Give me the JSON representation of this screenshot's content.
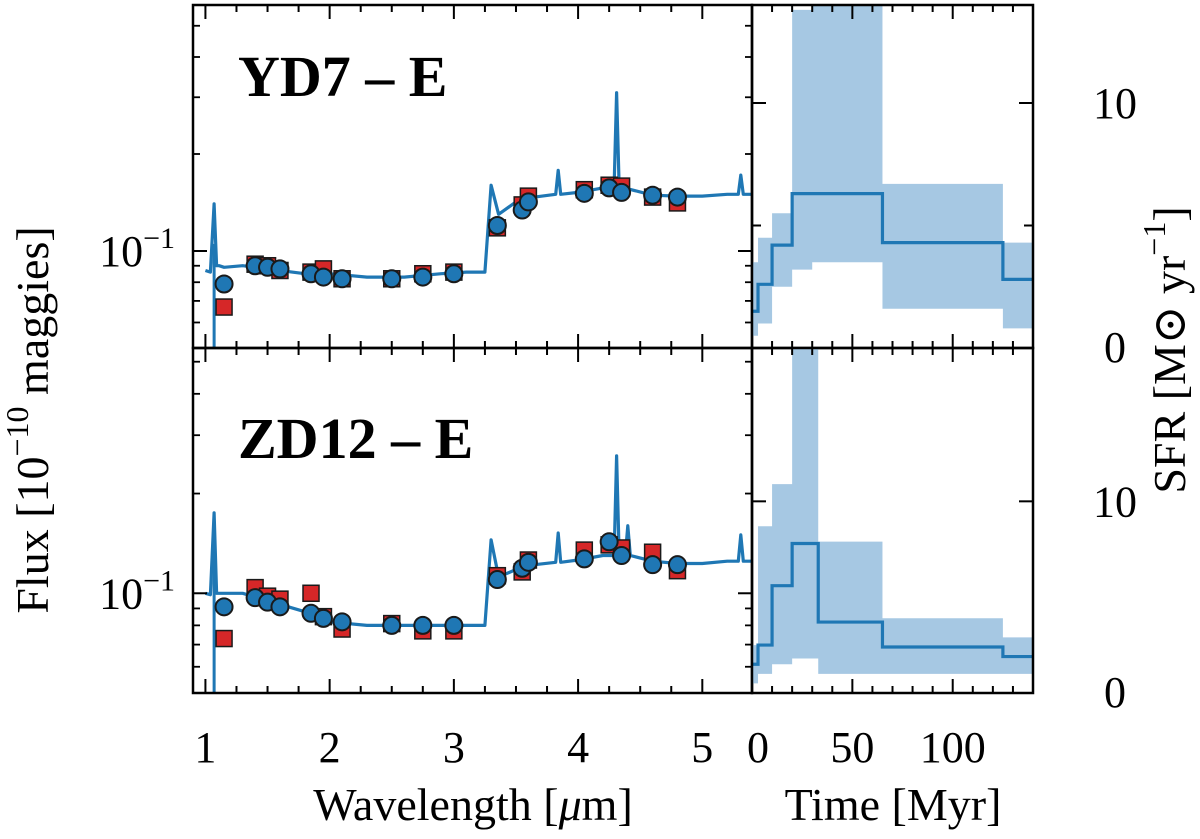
{
  "colors": {
    "model": "#1f77b4",
    "sfh_band": "#a6c8e3",
    "observed": "#d62728",
    "predicted": "#1f77b4",
    "edge": "#1a1a1a"
  },
  "labels": {
    "title_top": "YD7 – E",
    "title_bottom": "ZD12 – E",
    "sed_xlabel": "Wavelength [μm]",
    "sed_ylabel": "Flux [10^−10 maggies]",
    "sfh_xlabel": "Time [Myr]",
    "sfh_ylabel": "SFR [M⊙ yr^−1]",
    "flux_tick": "10^−1"
  },
  "chart_data": [
    {
      "type": "line",
      "title": "YD7 – E",
      "xlabel": "Wavelength [μm]",
      "ylabel": "Flux [10^−10 maggies]",
      "xlim": [
        0.9,
        5.4
      ],
      "ylim": [
        0.05,
        0.58
      ],
      "yscale": "log",
      "xticks": [
        1,
        2,
        3,
        4,
        5
      ],
      "yticks": [
        0.1
      ],
      "grid": false,
      "model_spectrum": {
        "x": [
          1.0,
          1.04,
          1.07,
          1.09,
          1.11,
          1.15,
          1.3,
          1.5,
          1.8,
          2.0,
          2.3,
          2.6,
          2.9,
          3.1,
          3.25,
          3.3,
          3.36,
          3.5,
          3.65,
          3.82,
          3.84,
          3.86,
          4.0,
          4.2,
          4.29,
          4.31,
          4.33,
          4.36,
          4.4,
          4.6,
          4.8,
          5.0,
          5.2,
          5.29,
          5.31,
          5.33,
          5.4
        ],
        "y": [
          0.087,
          0.086,
          0.14,
          0.09,
          0.09,
          0.089,
          0.09,
          0.088,
          0.085,
          0.085,
          0.083,
          0.083,
          0.085,
          0.086,
          0.086,
          0.16,
          0.13,
          0.142,
          0.147,
          0.15,
          0.178,
          0.15,
          0.152,
          0.157,
          0.158,
          0.31,
          0.16,
          0.158,
          0.156,
          0.149,
          0.148,
          0.148,
          0.15,
          0.15,
          0.172,
          0.15,
          0.15
        ]
      },
      "observed_photometry": {
        "x": [
          1.15,
          1.4,
          1.5,
          1.6,
          1.85,
          1.95,
          2.1,
          2.5,
          2.75,
          3.0,
          3.35,
          3.55,
          3.6,
          4.05,
          4.25,
          4.35,
          4.6,
          4.8
        ],
        "y": [
          0.067,
          0.091,
          0.09,
          0.087,
          0.086,
          0.088,
          0.082,
          0.082,
          0.085,
          0.086,
          0.118,
          0.139,
          0.148,
          0.155,
          0.16,
          0.159,
          0.147,
          0.141
        ]
      },
      "model_photometry": {
        "x": [
          1.15,
          1.4,
          1.5,
          1.6,
          1.85,
          1.95,
          2.1,
          2.5,
          2.75,
          3.0,
          3.35,
          3.55,
          3.6,
          4.05,
          4.25,
          4.35,
          4.6,
          4.8
        ],
        "y": [
          0.079,
          0.09,
          0.089,
          0.088,
          0.085,
          0.083,
          0.082,
          0.082,
          0.083,
          0.085,
          0.12,
          0.134,
          0.142,
          0.151,
          0.157,
          0.152,
          0.149,
          0.147
        ]
      }
    },
    {
      "type": "area",
      "title": "",
      "xlabel": "Time [Myr]",
      "ylabel": "SFR [M⊙ yr^−1]",
      "xlim": [
        0,
        140
      ],
      "ylim": [
        0,
        14
      ],
      "xticks": [
        0,
        50,
        100
      ],
      "yticks": [
        0,
        5,
        10
      ],
      "ytick_labels": [
        0,
        10
      ],
      "grid": false,
      "step_edges": [
        0,
        3,
        10,
        20,
        30,
        65,
        125,
        140
      ],
      "median": [
        1.5,
        2.6,
        4.2,
        6.3,
        6.3,
        4.3,
        2.8
      ],
      "lower": [
        0.5,
        1.0,
        2.5,
        3.2,
        3.5,
        1.6,
        0.8
      ],
      "upper": [
        3.5,
        4.5,
        5.5,
        13.8,
        14.1,
        6.7,
        4.3
      ]
    },
    {
      "type": "line",
      "title": "ZD12 – E",
      "xlabel": "Wavelength [μm]",
      "ylabel": "Flux [10^−10 maggies]",
      "xlim": [
        0.9,
        5.4
      ],
      "ylim": [
        0.05,
        0.55
      ],
      "yscale": "log",
      "xticks": [
        1,
        2,
        3,
        4,
        5
      ],
      "yticks": [
        0.1
      ],
      "grid": false,
      "model_spectrum": {
        "x": [
          1.0,
          1.04,
          1.07,
          1.09,
          1.11,
          1.15,
          1.3,
          1.5,
          1.8,
          2.0,
          2.3,
          2.6,
          2.9,
          3.1,
          3.25,
          3.3,
          3.36,
          3.5,
          3.65,
          3.82,
          3.84,
          3.86,
          4.0,
          4.2,
          4.29,
          4.31,
          4.33,
          4.38,
          4.4,
          4.42,
          4.6,
          4.8,
          5.0,
          5.2,
          5.29,
          5.31,
          5.33,
          5.4
        ],
        "y": [
          0.1,
          0.099,
          0.175,
          0.1,
          0.1,
          0.1,
          0.1,
          0.095,
          0.088,
          0.082,
          0.08,
          0.08,
          0.08,
          0.08,
          0.08,
          0.145,
          0.112,
          0.118,
          0.122,
          0.124,
          0.152,
          0.124,
          0.126,
          0.13,
          0.13,
          0.26,
          0.132,
          0.13,
          0.16,
          0.13,
          0.125,
          0.123,
          0.123,
          0.125,
          0.125,
          0.15,
          0.125,
          0.125
        ]
      },
      "observed_photometry": {
        "x": [
          1.15,
          1.4,
          1.5,
          1.6,
          1.85,
          1.95,
          2.1,
          2.5,
          2.75,
          3.0,
          3.35,
          3.55,
          3.6,
          4.05,
          4.25,
          4.35,
          4.6,
          4.8
        ],
        "y": [
          0.073,
          0.104,
          0.098,
          0.096,
          0.1,
          0.085,
          0.078,
          0.081,
          0.077,
          0.077,
          0.113,
          0.116,
          0.126,
          0.135,
          0.14,
          0.137,
          0.133,
          0.117
        ]
      },
      "model_photometry": {
        "x": [
          1.15,
          1.4,
          1.5,
          1.6,
          1.85,
          1.95,
          2.1,
          2.5,
          2.75,
          3.0,
          3.35,
          3.55,
          3.6,
          4.05,
          4.25,
          4.35,
          4.6,
          4.8
        ],
        "y": [
          0.091,
          0.097,
          0.094,
          0.091,
          0.087,
          0.084,
          0.082,
          0.08,
          0.08,
          0.08,
          0.11,
          0.119,
          0.124,
          0.127,
          0.143,
          0.13,
          0.122,
          0.122
        ]
      }
    },
    {
      "type": "area",
      "title": "",
      "xlabel": "Time [Myr]",
      "ylabel": "SFR [M⊙ yr^−1]",
      "xlim": [
        0,
        140
      ],
      "ylim": [
        0,
        18
      ],
      "xticks": [
        0,
        50,
        100
      ],
      "yticks": [
        0,
        10
      ],
      "ytick_labels": [
        0,
        10
      ],
      "grid": false,
      "step_edges": [
        0,
        3,
        10,
        20,
        33,
        65,
        125,
        140
      ],
      "median": [
        1.5,
        2.5,
        5.6,
        7.8,
        3.7,
        2.4,
        1.9
      ],
      "lower": [
        0.5,
        1.0,
        1.5,
        1.8,
        1.0,
        1.0,
        1.0
      ],
      "upper": [
        2.5,
        8.7,
        10.9,
        18.3,
        7.9,
        3.9,
        2.9
      ]
    }
  ]
}
